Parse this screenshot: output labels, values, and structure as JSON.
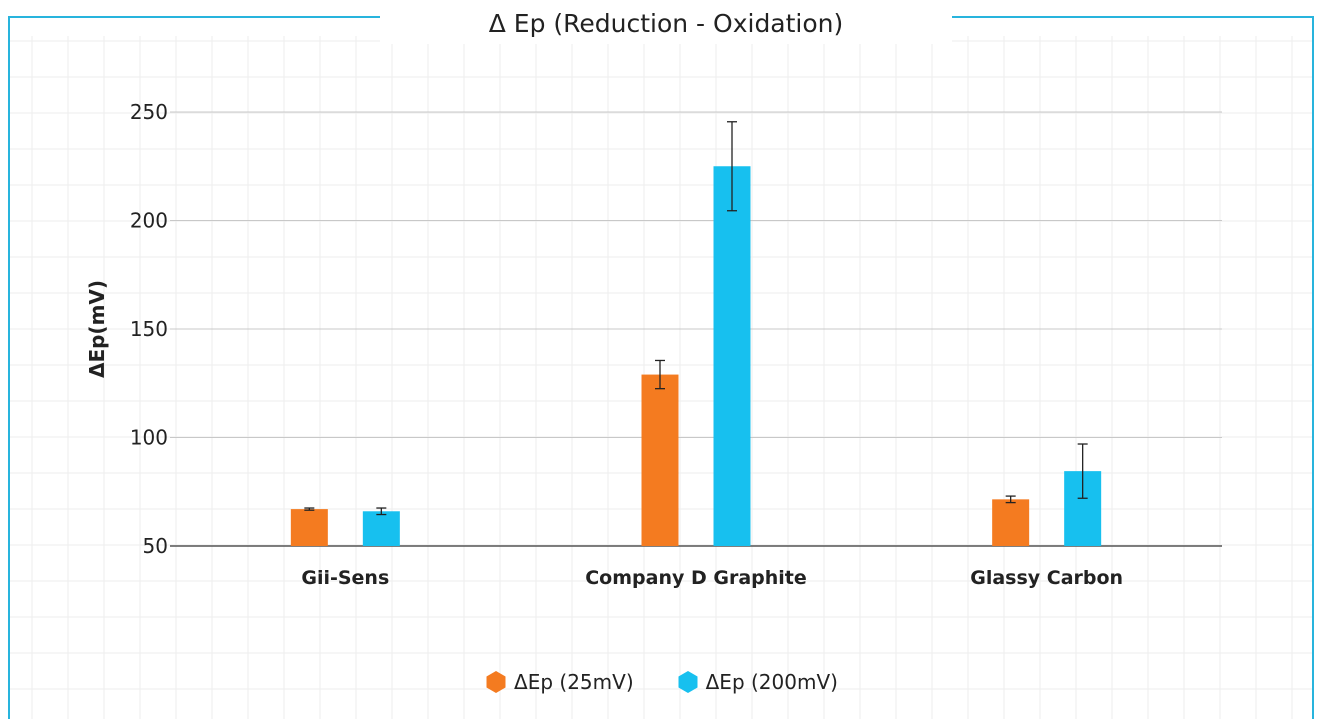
{
  "chart_data": {
    "type": "bar",
    "title": "Δ Ep (Reduction - Oxidation)",
    "ylabel": "ΔEp(mV)",
    "xlabel": "",
    "ylim": [
      50,
      250
    ],
    "yticks": [
      50,
      100,
      150,
      200,
      250
    ],
    "categories": [
      "Gii-Sens",
      "Company D Graphite",
      "Glassy Carbon"
    ],
    "series": [
      {
        "name": "ΔEp (25mV)",
        "color": "#f47b20",
        "values": [
          67,
          129,
          71.5
        ],
        "errors": [
          0.5,
          6.5,
          1.5
        ]
      },
      {
        "name": "ΔEp (200mV)",
        "color": "#17c0ef",
        "values": [
          66,
          225,
          84.5
        ],
        "errors": [
          1.5,
          20.5,
          12.5
        ]
      }
    ],
    "grid": true,
    "legend_position": "bottom"
  },
  "style": {
    "frame_color": "#28b4dd",
    "gridline_color": "#c8c8c8",
    "background_grid_color": "#eeeeee",
    "axis_color": "#555555",
    "text_color": "#222222"
  }
}
